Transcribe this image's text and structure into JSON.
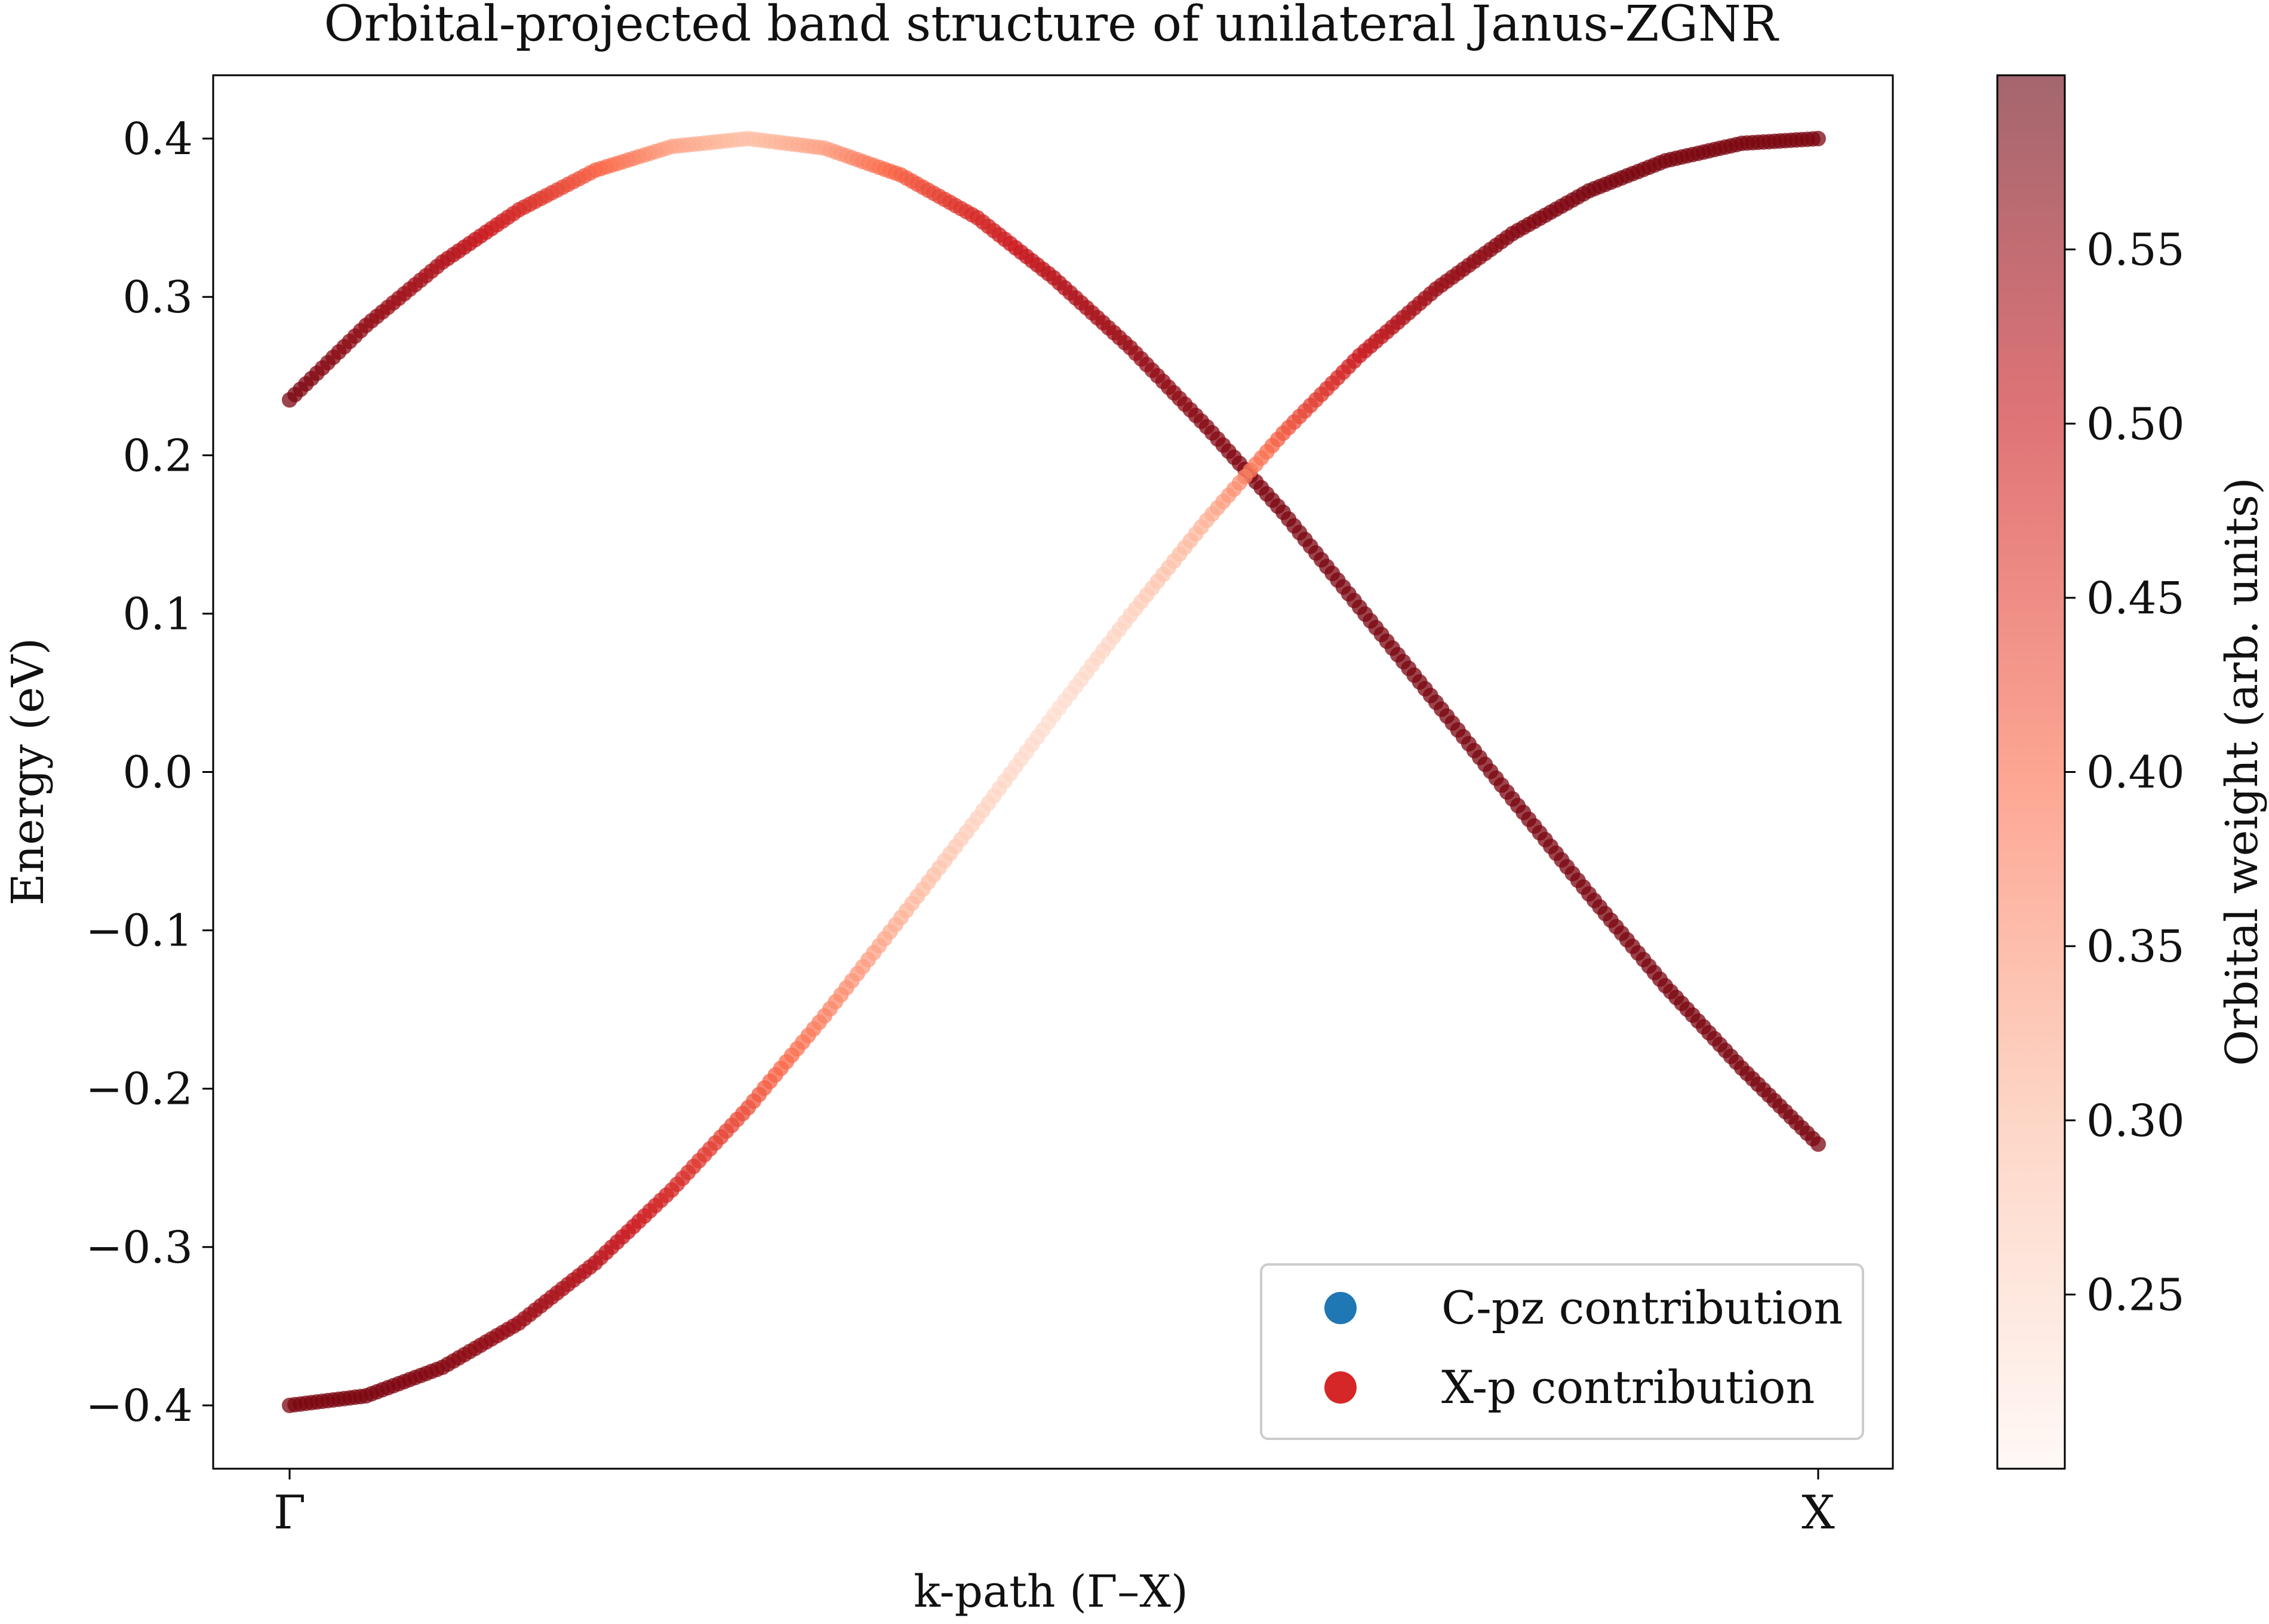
{
  "chart_data": {
    "type": "scatter",
    "title": "Orbital-projected band structure of unilateral Janus-ZGNR",
    "xlabel": "k-path (Γ–X)",
    "ylabel": "Energy (eV)",
    "x_ticks": [
      "Γ",
      "X"
    ],
    "ylim": [
      -0.44,
      0.44
    ],
    "y_ticks": [
      {
        "value": 0.4,
        "label": "0.4"
      },
      {
        "value": 0.3,
        "label": "0.3"
      },
      {
        "value": 0.2,
        "label": "0.2"
      },
      {
        "value": 0.1,
        "label": "0.1"
      },
      {
        "value": 0.0,
        "label": "0.0"
      },
      {
        "value": -0.1,
        "label": "−0.1"
      },
      {
        "value": -0.2,
        "label": "−0.2"
      },
      {
        "value": -0.3,
        "label": "−0.3"
      },
      {
        "value": -0.4,
        "label": "−0.4"
      }
    ],
    "grid": false,
    "legend": {
      "placement": "lower-right",
      "entries": [
        {
          "label": "C-pz contribution",
          "color": "#1f77b4"
        },
        {
          "label": "X-p contribution",
          "color": "#d62728"
        }
      ]
    },
    "colorbar": {
      "label": "Orbital weight (arb. units)",
      "range": [
        0.2,
        0.6
      ],
      "ticks": [
        {
          "value": 0.25,
          "label": "0.25"
        },
        {
          "value": 0.3,
          "label": "0.30"
        },
        {
          "value": 0.35,
          "label": "0.35"
        },
        {
          "value": 0.4,
          "label": "0.40"
        },
        {
          "value": 0.45,
          "label": "0.45"
        },
        {
          "value": 0.5,
          "label": "0.50"
        },
        {
          "value": 0.55,
          "label": "0.55"
        }
      ],
      "colormap": "Reds",
      "alpha": 0.6
    },
    "series": [
      {
        "x": [
          0,
          0.05,
          0.1,
          0.15,
          0.2,
          0.25,
          0.3,
          0.35,
          0.4,
          0.45,
          0.5,
          0.55,
          0.6,
          0.65,
          0.7,
          0.75,
          0.8,
          0.85,
          0.9,
          0.95,
          1
        ],
        "y": [
          0.235,
          0.282,
          0.322,
          0.355,
          0.38,
          0.395,
          0.4,
          0.394,
          0.377,
          0.35,
          0.312,
          0.268,
          0.218,
          0.164,
          0.104,
          0.044,
          -0.017,
          -0.077,
          -0.135,
          -0.187,
          -0.235
        ],
        "weight": [
          0.58,
          0.56,
          0.53,
          0.48,
          0.41,
          0.33,
          0.29,
          0.33,
          0.41,
          0.48,
          0.52,
          0.55,
          0.57,
          0.58,
          0.58,
          0.58,
          0.58,
          0.58,
          0.58,
          0.58,
          0.58
        ]
      },
      {
        "x": [
          0,
          0.05,
          0.1,
          0.15,
          0.2,
          0.25,
          0.3,
          0.35,
          0.4,
          0.45,
          0.5,
          0.55,
          0.6,
          0.65,
          0.7,
          0.75,
          0.8,
          0.85,
          0.9,
          0.95,
          1
        ],
        "y": [
          -0.4,
          -0.394,
          -0.376,
          -0.348,
          -0.31,
          -0.264,
          -0.212,
          -0.154,
          -0.092,
          -0.029,
          0.036,
          0.099,
          0.159,
          0.214,
          0.263,
          0.305,
          0.34,
          0.367,
          0.386,
          0.397,
          0.4
        ],
        "weight": [
          0.58,
          0.58,
          0.57,
          0.55,
          0.52,
          0.48,
          0.43,
          0.37,
          0.31,
          0.26,
          0.24,
          0.26,
          0.31,
          0.42,
          0.5,
          0.55,
          0.57,
          0.58,
          0.58,
          0.58,
          0.58
        ]
      }
    ]
  }
}
